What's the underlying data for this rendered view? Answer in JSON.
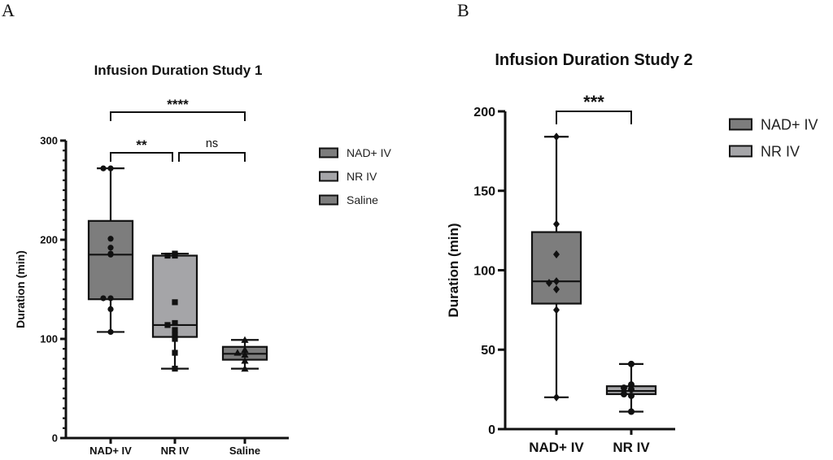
{
  "panels": [
    "A",
    "B"
  ],
  "chart_data": [
    {
      "type": "box",
      "title": "Infusion Duration Study 1",
      "xlabel": "",
      "ylabel": "Duration (min)",
      "ylim": [
        0,
        300
      ],
      "yticks": [
        0,
        100,
        200,
        300
      ],
      "yminor_step": 10,
      "categories": [
        "NAD+ IV",
        "NR IV",
        "Saline"
      ],
      "legend": {
        "placement": "right",
        "entries": [
          {
            "label": "NAD+ IV",
            "color": "#7d7d7d"
          },
          {
            "label": "NR IV",
            "color": "#a5a5a8"
          },
          {
            "label": "Saline",
            "color": "#7d7d7d"
          }
        ]
      },
      "series": [
        {
          "name": "NAD+ IV",
          "color": "#7d7d7d",
          "marker": "circle",
          "whisker_low": 107,
          "q1": 140,
          "median": 185,
          "q3": 219,
          "whisker_high": 272,
          "points": [
            272,
            272,
            201,
            192,
            186,
            185,
            141,
            141,
            130,
            107
          ]
        },
        {
          "name": "NR IV",
          "color": "#a5a5a8",
          "marker": "square",
          "whisker_low": 70,
          "q1": 102,
          "median": 114,
          "q3": 184,
          "whisker_high": 186,
          "points": [
            186,
            184,
            184,
            137,
            116,
            114,
            109,
            104,
            100,
            86,
            70
          ]
        },
        {
          "name": "Saline",
          "color": "#7d7d7d",
          "marker": "triangle",
          "whisker_low": 70,
          "q1": 79,
          "median": 85,
          "q3": 92,
          "whisker_high": 99,
          "points": [
            99,
            89,
            86,
            84,
            78,
            70
          ]
        }
      ],
      "significance": [
        {
          "from": 0,
          "to": 2,
          "label": "****",
          "level": 2
        },
        {
          "from": 0,
          "to": 1,
          "label": "**",
          "level": 1
        },
        {
          "from": 1,
          "to": 2,
          "label": "ns",
          "level": 1
        }
      ]
    },
    {
      "type": "box",
      "title": "Infusion Duration Study 2",
      "xlabel": "",
      "ylabel": "Duration (min)",
      "ylim": [
        0,
        200
      ],
      "yticks": [
        0,
        50,
        100,
        150,
        200
      ],
      "yminor_step": null,
      "categories": [
        "NAD+ IV",
        "NR IV"
      ],
      "legend": {
        "placement": "right",
        "entries": [
          {
            "label": "NAD+ IV",
            "color": "#7d7d7d"
          },
          {
            "label": "NR IV",
            "color": "#a5a5a8"
          }
        ]
      },
      "series": [
        {
          "name": "NAD+ IV",
          "color": "#7d7d7d",
          "marker": "diamond",
          "whisker_low": 20,
          "q1": 79,
          "median": 93,
          "q3": 124,
          "whisker_high": 184,
          "points": [
            184,
            129,
            110,
            93,
            92,
            88,
            75,
            20
          ]
        },
        {
          "name": "NR IV",
          "color": "#a5a5a8",
          "marker": "circle",
          "whisker_low": 11,
          "q1": 22,
          "median": 24,
          "q3": 27,
          "whisker_high": 41,
          "points": [
            41,
            28,
            26,
            25,
            22,
            21,
            11
          ]
        }
      ],
      "significance": [
        {
          "from": 0,
          "to": 1,
          "label": "***",
          "level": 1
        }
      ]
    }
  ]
}
